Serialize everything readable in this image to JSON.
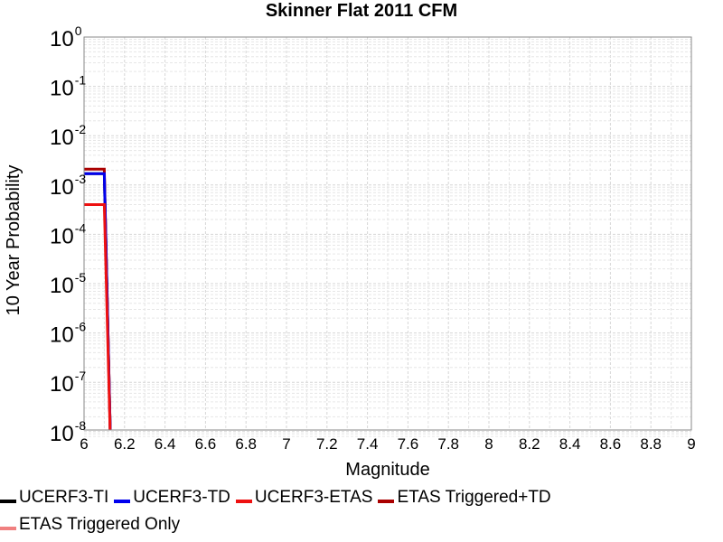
{
  "chart_data": {
    "type": "line",
    "title": "Skinner Flat 2011 CFM",
    "xlabel": "Magnitude",
    "ylabel": "10 Year Probability",
    "xlim": [
      6,
      9
    ],
    "ylim_log10": [
      -8.15,
      0
    ],
    "yscale": "log",
    "x_ticks": [
      6,
      6.2,
      6.4,
      6.6,
      6.8,
      7,
      7.2,
      7.4,
      7.6,
      7.8,
      8,
      8.2,
      8.4,
      8.6,
      8.8,
      9
    ],
    "x_tick_labels": [
      "6",
      "6.2",
      "6.4",
      "6.6",
      "6.8",
      "7",
      "7.2",
      "7.4",
      "7.6",
      "7.8",
      "8",
      "8.2",
      "8.4",
      "8.6",
      "8.8",
      "9"
    ],
    "y_tick_exponents": [
      "0",
      "-1",
      "-2",
      "-3",
      "-4",
      "-5",
      "-6",
      "-7",
      "-8"
    ],
    "y_tick_base": "10",
    "grid": true,
    "legend_position": "bottom",
    "series": [
      {
        "name": "UCERF3-TI",
        "color": "#000000",
        "x": [
          6.0,
          6.1,
          6.135
        ],
        "y": [
          0.0017,
          0.0017,
          1e-09
        ]
      },
      {
        "name": "UCERF3-TD",
        "color": "#0000ee",
        "x": [
          6.0,
          6.1,
          6.135
        ],
        "y": [
          0.0017,
          0.0017,
          1e-09
        ]
      },
      {
        "name": "UCERF3-ETAS",
        "color": "#ee1111",
        "x": [
          6.0,
          6.1,
          6.135
        ],
        "y": [
          0.0004,
          0.0004,
          1e-09
        ]
      },
      {
        "name": "ETAS Triggered+TD",
        "color": "#aa0000",
        "x": [
          6.0,
          6.1,
          6.135
        ],
        "y": [
          0.0021,
          0.0021,
          1e-09
        ]
      },
      {
        "name": "ETAS Triggered Only",
        "color": "#f08080",
        "x": [],
        "y": []
      }
    ]
  }
}
